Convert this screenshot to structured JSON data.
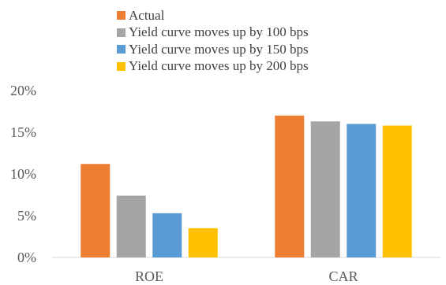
{
  "chart_data": {
    "type": "bar",
    "categories": [
      "ROE",
      "CAR"
    ],
    "series": [
      {
        "name": "Actual",
        "values": [
          11.2,
          17.0
        ],
        "color": "#ED7D31"
      },
      {
        "name": "Yield curve moves up by 100 bps",
        "values": [
          7.4,
          16.3
        ],
        "color": "#A5A5A5"
      },
      {
        "name": "Yield curve moves up by 150 bps",
        "values": [
          5.3,
          16.0
        ],
        "color": "#5B9BD5"
      },
      {
        "name": "Yield curve moves up by 200 bps",
        "values": [
          3.5,
          15.8
        ],
        "color": "#FFC000"
      }
    ],
    "ylim": [
      0,
      20
    ],
    "yticks": [
      0,
      5,
      10,
      15,
      20
    ],
    "ytick_labels": [
      "0%",
      "5%",
      "10%",
      "15%",
      "20%"
    ],
    "grid": false,
    "legend_position": "top-left",
    "title": "",
    "xlabel": "",
    "ylabel": ""
  }
}
